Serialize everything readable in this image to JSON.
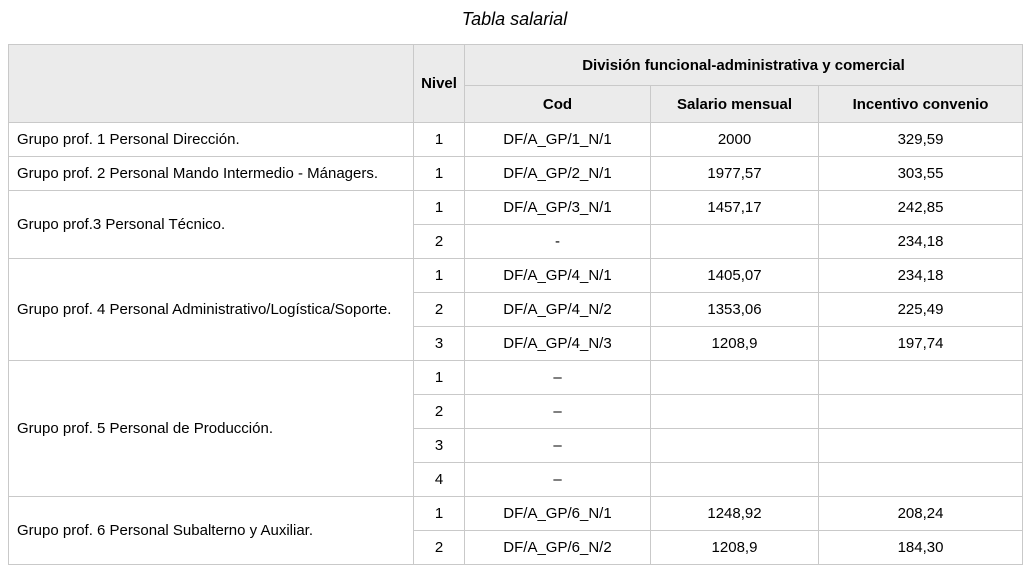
{
  "page": {
    "title": "Tabla salarial"
  },
  "table": {
    "headers": {
      "nivel": "Nivel",
      "division_group": "División funcional-administrativa y comercial",
      "cod": "Cod",
      "salario": "Salario mensual",
      "incentivo": "Incentivo convenio"
    },
    "groups": [
      {
        "label": "Grupo prof. 1 Personal Dirección.",
        "rows": [
          {
            "nivel": "1",
            "cod": "DF/A_GP/1_N/1",
            "salario": "2000",
            "incentivo": "329,59"
          }
        ]
      },
      {
        "label": "Grupo prof. 2 Personal Mando Intermedio - Mánagers.",
        "rows": [
          {
            "nivel": "1",
            "cod": "DF/A_GP/2_N/1",
            "salario": "1977,57",
            "incentivo": "303,55"
          }
        ]
      },
      {
        "label": "Grupo prof.3 Personal Técnico.",
        "rows": [
          {
            "nivel": "1",
            "cod": "DF/A_GP/3_N/1",
            "salario": "1457,17",
            "incentivo": "242,85"
          },
          {
            "nivel": "2",
            "cod": "-",
            "salario": "",
            "incentivo": "234,18"
          }
        ]
      },
      {
        "label": "Grupo prof. 4 Personal Administrativo/Logística/Soporte.",
        "rows": [
          {
            "nivel": "1",
            "cod": "DF/A_GP/4_N/1",
            "salario": "1405,07",
            "incentivo": "234,18"
          },
          {
            "nivel": "2",
            "cod": "DF/A_GP/4_N/2",
            "salario": "1353,06",
            "incentivo": "225,49"
          },
          {
            "nivel": "3",
            "cod": "DF/A_GP/4_N/3",
            "salario": "1208,9",
            "incentivo": "197,74"
          }
        ]
      },
      {
        "label": "Grupo prof. 5 Personal de Producción.",
        "rows": [
          {
            "nivel": "1",
            "cod": "–",
            "salario": "",
            "incentivo": ""
          },
          {
            "nivel": "2",
            "cod": "–",
            "salario": "",
            "incentivo": ""
          },
          {
            "nivel": "3",
            "cod": "–",
            "salario": "",
            "incentivo": ""
          },
          {
            "nivel": "4",
            "cod": "–",
            "salario": "",
            "incentivo": ""
          }
        ]
      },
      {
        "label": "Grupo prof. 6 Personal Subalterno y Auxiliar.",
        "rows": [
          {
            "nivel": "1",
            "cod": "DF/A_GP/6_N/1",
            "salario": "1248,92",
            "incentivo": "208,24"
          },
          {
            "nivel": "2",
            "cod": "DF/A_GP/6_N/2",
            "salario": "1208,9",
            "incentivo": "184,30"
          }
        ]
      }
    ]
  },
  "colors": {
    "header_bg": "#ebebeb",
    "border": "#c9c9c9",
    "text": "#000000"
  }
}
